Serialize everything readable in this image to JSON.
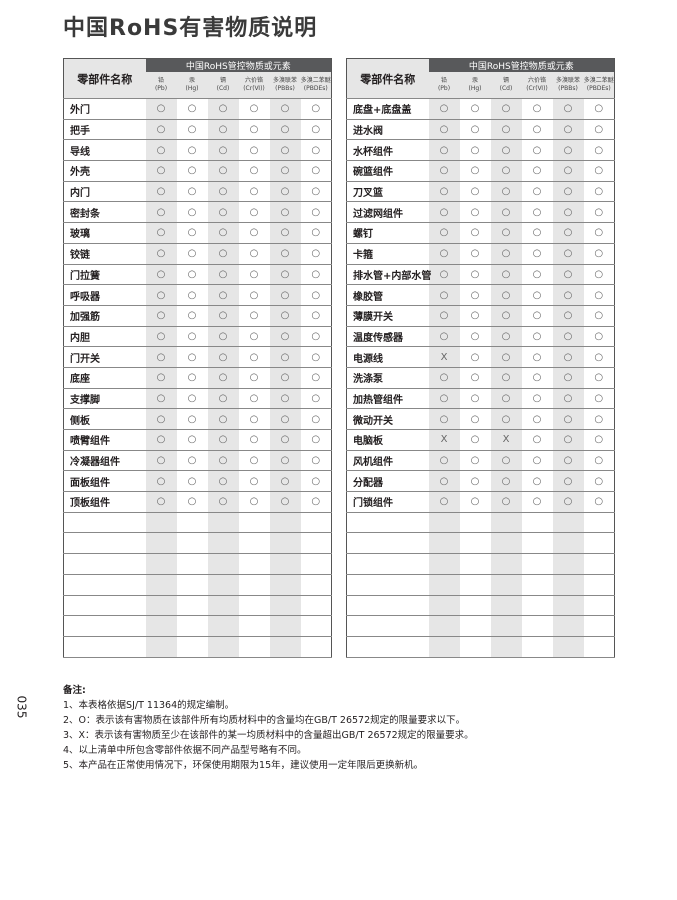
{
  "title": "中国RoHS有害物质说明",
  "tables": [
    {
      "name_header": "零部件名称",
      "group_header": "中国RoHS管控物质或元素",
      "columns": [
        {
          "name": "铅",
          "symbol": "(Pb)"
        },
        {
          "name": "汞",
          "symbol": "(Hg)"
        },
        {
          "name": "镉",
          "symbol": "(Cd)"
        },
        {
          "name": "六价铬",
          "symbol": "(Cr(Ⅵ))"
        },
        {
          "name": "多溴联苯",
          "symbol": "(PBBs)"
        },
        {
          "name": "多溴二苯醚",
          "symbol": "(PBDEs)"
        }
      ],
      "rows": [
        [
          "外门",
          "○",
          "○",
          "○",
          "○",
          "○",
          "○"
        ],
        [
          "把手",
          "○",
          "○",
          "○",
          "○",
          "○",
          "○"
        ],
        [
          "导线",
          "○",
          "○",
          "○",
          "○",
          "○",
          "○"
        ],
        [
          "外壳",
          "○",
          "○",
          "○",
          "○",
          "○",
          "○"
        ],
        [
          "内门",
          "○",
          "○",
          "○",
          "○",
          "○",
          "○"
        ],
        [
          "密封条",
          "○",
          "○",
          "○",
          "○",
          "○",
          "○"
        ],
        [
          "玻璃",
          "○",
          "○",
          "○",
          "○",
          "○",
          "○"
        ],
        [
          "铰链",
          "○",
          "○",
          "○",
          "○",
          "○",
          "○"
        ],
        [
          "门拉簧",
          "○",
          "○",
          "○",
          "○",
          "○",
          "○"
        ],
        [
          "呼吸器",
          "○",
          "○",
          "○",
          "○",
          "○",
          "○"
        ],
        [
          "加强筋",
          "○",
          "○",
          "○",
          "○",
          "○",
          "○"
        ],
        [
          "内胆",
          "○",
          "○",
          "○",
          "○",
          "○",
          "○"
        ],
        [
          "门开关",
          "○",
          "○",
          "○",
          "○",
          "○",
          "○"
        ],
        [
          "底座",
          "○",
          "○",
          "○",
          "○",
          "○",
          "○"
        ],
        [
          "支撑脚",
          "○",
          "○",
          "○",
          "○",
          "○",
          "○"
        ],
        [
          "侧板",
          "○",
          "○",
          "○",
          "○",
          "○",
          "○"
        ],
        [
          "喷臂组件",
          "○",
          "○",
          "○",
          "○",
          "○",
          "○"
        ],
        [
          "冷凝器组件",
          "○",
          "○",
          "○",
          "○",
          "○",
          "○"
        ],
        [
          "面板组件",
          "○",
          "○",
          "○",
          "○",
          "○",
          "○"
        ],
        [
          "顶板组件",
          "○",
          "○",
          "○",
          "○",
          "○",
          "○"
        ]
      ]
    },
    {
      "name_header": "零部件名称",
      "group_header": "中国RoHS管控物质或元素",
      "columns": [
        {
          "name": "铅",
          "symbol": "(Pb)"
        },
        {
          "name": "汞",
          "symbol": "(Hg)"
        },
        {
          "name": "镉",
          "symbol": "(Cd)"
        },
        {
          "name": "六价铬",
          "symbol": "(Cr(Ⅵ))"
        },
        {
          "name": "多溴联苯",
          "symbol": "(PBBs)"
        },
        {
          "name": "多溴二苯醚",
          "symbol": "(PBDEs)"
        }
      ],
      "rows": [
        [
          "底盘+底盘盖",
          "○",
          "○",
          "○",
          "○",
          "○",
          "○"
        ],
        [
          "进水阀",
          "○",
          "○",
          "○",
          "○",
          "○",
          "○"
        ],
        [
          "水杯组件",
          "○",
          "○",
          "○",
          "○",
          "○",
          "○"
        ],
        [
          "碗篮组件",
          "○",
          "○",
          "○",
          "○",
          "○",
          "○"
        ],
        [
          "刀叉篮",
          "○",
          "○",
          "○",
          "○",
          "○",
          "○"
        ],
        [
          "过滤网组件",
          "○",
          "○",
          "○",
          "○",
          "○",
          "○"
        ],
        [
          "螺钉",
          "○",
          "○",
          "○",
          "○",
          "○",
          "○"
        ],
        [
          "卡箍",
          "○",
          "○",
          "○",
          "○",
          "○",
          "○"
        ],
        [
          "排水管+内部水管",
          "○",
          "○",
          "○",
          "○",
          "○",
          "○"
        ],
        [
          "橡胶管",
          "○",
          "○",
          "○",
          "○",
          "○",
          "○"
        ],
        [
          "薄膜开关",
          "○",
          "○",
          "○",
          "○",
          "○",
          "○"
        ],
        [
          "温度传感器",
          "○",
          "○",
          "○",
          "○",
          "○",
          "○"
        ],
        [
          "电源线",
          "X",
          "○",
          "○",
          "○",
          "○",
          "○"
        ],
        [
          "洗涤泵",
          "○",
          "○",
          "○",
          "○",
          "○",
          "○"
        ],
        [
          "加热管组件",
          "○",
          "○",
          "○",
          "○",
          "○",
          "○"
        ],
        [
          "微动开关",
          "○",
          "○",
          "○",
          "○",
          "○",
          "○"
        ],
        [
          "电脑板",
          "X",
          "○",
          "X",
          "○",
          "○",
          "○"
        ],
        [
          "风机组件",
          "○",
          "○",
          "○",
          "○",
          "○",
          "○"
        ],
        [
          "分配器",
          "○",
          "○",
          "○",
          "○",
          "○",
          "○"
        ],
        [
          "门锁组件",
          "○",
          "○",
          "○",
          "○",
          "○",
          "○"
        ]
      ]
    }
  ],
  "notes": {
    "heading": "备注:",
    "items": [
      "1、本表格依据SJ/T 11364的规定编制。",
      "2、O：表示该有害物质在该部件所有均质材料中的含量均在GB/T 26572规定的限量要求以下。",
      "3、X：表示该有害物质至少在该部件的某一均质材料中的含量超出GB/T 26572规定的限量要求。",
      "4、以上清单中所包含零部件依据不同产品型号略有不同。",
      "5、本产品在正常使用情况下，环保使用期限为15年，建议使用一定年限后更换新机。"
    ]
  },
  "page_number": "035"
}
